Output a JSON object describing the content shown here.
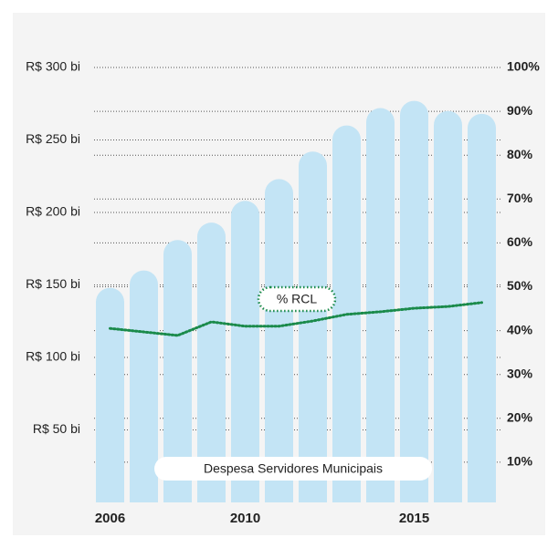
{
  "chart_data": {
    "type": "bar",
    "categories": [
      "2006",
      null,
      null,
      null,
      "2010",
      null,
      null,
      null,
      null,
      "2015",
      null,
      null
    ],
    "series": [
      {
        "name": "Despesa Servidores Municipais",
        "color": "#c3e4f5",
        "values": [
          148,
          160,
          181,
          193,
          208,
          223,
          242,
          260,
          272,
          277,
          270,
          268
        ]
      },
      {
        "name": "% RCL",
        "color": "#1a8a4a",
        "type": "line",
        "axis": "y2",
        "values": [
          40.5,
          39.7,
          38.9,
          42.0,
          41.0,
          41.0,
          42.2,
          43.7,
          44.3,
          45.1,
          45.5,
          46.4
        ]
      }
    ],
    "ylim": [
      0,
      300
    ],
    "yticks": [
      {
        "value": 50,
        "label": "R$ 50 bi"
      },
      {
        "value": 100,
        "label": "R$ 100 bi"
      },
      {
        "value": 150,
        "label": "R$ 150 bi"
      },
      {
        "value": 200,
        "label": "R$ 200 bi"
      },
      {
        "value": 250,
        "label": "R$ 250 bi"
      },
      {
        "value": 300,
        "label": "R$ 300 bi"
      }
    ],
    "y2lim": [
      0,
      100
    ],
    "y2ticks": [
      {
        "value": 10,
        "label": "10%"
      },
      {
        "value": 20,
        "label": "20%"
      },
      {
        "value": 30,
        "label": "30%"
      },
      {
        "value": 40,
        "label": "40%"
      },
      {
        "value": 50,
        "label": "50%"
      },
      {
        "value": 60,
        "label": "60%"
      },
      {
        "value": 70,
        "label": "70%"
      },
      {
        "value": 80,
        "label": "80%"
      },
      {
        "value": 90,
        "label": "90%"
      },
      {
        "value": 100,
        "label": "100%"
      }
    ],
    "grid": true
  }
}
